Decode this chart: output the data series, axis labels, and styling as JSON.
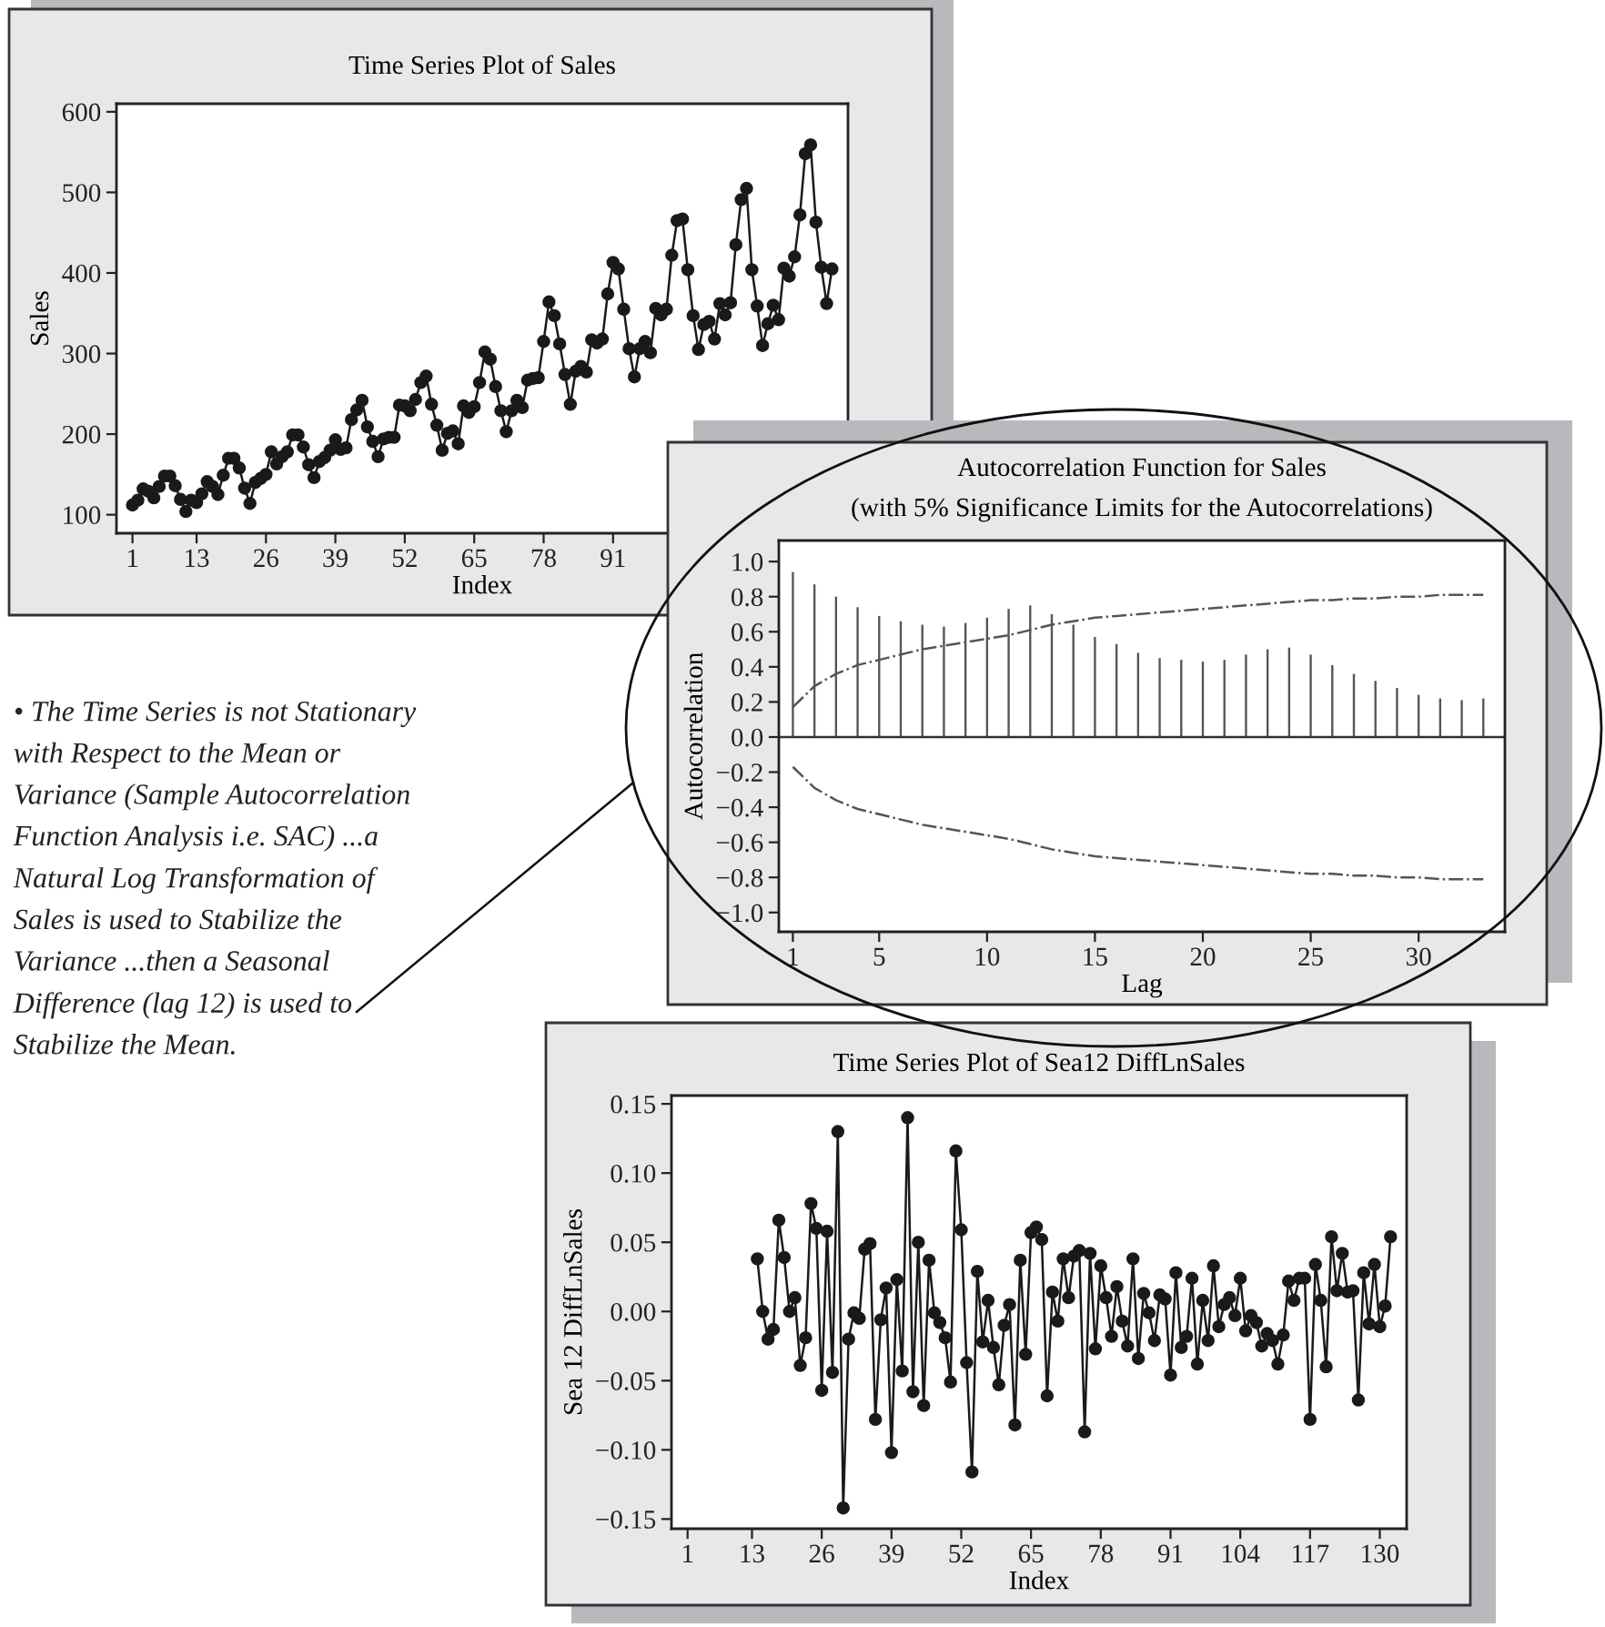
{
  "chart_data": [
    {
      "type": "line",
      "title": "Time Series Plot of Sales",
      "xlabel": "Index",
      "ylabel": "Sales",
      "marker": "circle",
      "x": [
        1,
        2,
        3,
        4,
        5,
        6,
        7,
        8,
        9,
        10,
        11,
        12,
        13,
        14,
        15,
        16,
        17,
        18,
        19,
        20,
        21,
        22,
        23,
        24,
        25,
        26,
        27,
        28,
        29,
        30,
        31,
        32,
        33,
        34,
        35,
        36,
        37,
        38,
        39,
        40,
        41,
        42,
        43,
        44,
        45,
        46,
        47,
        48,
        49,
        50,
        51,
        52,
        53,
        54,
        55,
        56,
        57,
        58,
        59,
        60,
        61,
        62,
        63,
        64,
        65,
        66,
        67,
        68,
        69,
        70,
        71,
        72,
        73,
        74,
        75,
        76,
        77,
        78,
        79,
        80,
        81,
        82,
        83,
        84,
        85,
        86,
        87,
        88,
        89,
        90,
        91,
        92,
        93,
        94,
        95,
        96,
        97,
        98,
        99,
        100,
        101,
        102,
        103,
        104,
        105,
        106,
        107,
        108,
        109,
        110,
        111,
        112,
        113,
        114,
        115,
        116,
        117,
        118,
        119,
        120,
        121,
        122,
        123,
        124,
        125,
        126,
        127,
        128,
        129,
        130,
        131,
        132
      ],
      "series": [
        {
          "color": "#1a1a1a",
          "values": [
            112,
            118,
            132,
            129,
            121,
            135,
            148,
            148,
            136,
            119,
            104,
            118,
            115,
            126,
            141,
            135,
            125,
            149,
            170,
            170,
            158,
            133,
            114,
            140,
            145,
            150,
            178,
            163,
            172,
            178,
            199,
            199,
            184,
            162,
            146,
            166,
            171,
            180,
            193,
            181,
            183,
            218,
            230,
            242,
            209,
            191,
            172,
            194,
            196,
            196,
            236,
            235,
            229,
            243,
            264,
            272,
            237,
            211,
            180,
            201,
            204,
            188,
            235,
            227,
            234,
            264,
            302,
            293,
            259,
            229,
            203,
            229,
            242,
            233,
            267,
            269,
            270,
            315,
            364,
            347,
            312,
            274,
            237,
            278,
            284,
            277,
            317,
            313,
            318,
            374,
            413,
            405,
            355,
            306,
            271,
            306,
            315,
            301,
            356,
            348,
            355,
            422,
            465,
            467,
            404,
            347,
            305,
            336,
            340,
            318,
            362,
            348,
            363,
            435,
            491,
            505,
            404,
            359,
            310,
            337,
            360,
            342,
            406,
            396,
            420,
            472,
            548,
            559,
            463,
            407,
            362,
            405
          ]
        }
      ],
      "xlim": [
        -2,
        135
      ],
      "ylim": [
        77,
        610
      ],
      "xticks": [
        1,
        13,
        26,
        39,
        52,
        65,
        78,
        91
      ],
      "yticks": [
        100,
        200,
        300,
        400,
        500,
        600
      ]
    },
    {
      "type": "bar",
      "title": "Autocorrelation Function for Sales",
      "subtitle": "(with 5% Significance Limits for the Autocorrelations)",
      "xlabel": "Lag",
      "ylabel": "Autocorrelation",
      "x": [
        1,
        2,
        3,
        4,
        5,
        6,
        7,
        8,
        9,
        10,
        11,
        12,
        13,
        14,
        15,
        16,
        17,
        18,
        19,
        20,
        21,
        22,
        23,
        24,
        25,
        26,
        27,
        28,
        29,
        30,
        31,
        32,
        33
      ],
      "series": [
        {
          "type": "bar",
          "color": "#555555",
          "values": [
            0.94,
            0.87,
            0.8,
            0.74,
            0.69,
            0.66,
            0.64,
            0.63,
            0.65,
            0.68,
            0.73,
            0.75,
            0.7,
            0.64,
            0.57,
            0.53,
            0.48,
            0.45,
            0.44,
            0.43,
            0.44,
            0.47,
            0.5,
            0.51,
            0.47,
            0.41,
            0.36,
            0.32,
            0.28,
            0.24,
            0.22,
            0.21,
            0.22
          ]
        },
        {
          "type": "line",
          "color": "#555555",
          "line_style": "dashdot",
          "values": [
            0.17,
            0.29,
            0.36,
            0.41,
            0.44,
            0.47,
            0.5,
            0.52,
            0.54,
            0.56,
            0.58,
            0.61,
            0.64,
            0.66,
            0.68,
            0.69,
            0.7,
            0.71,
            0.72,
            0.73,
            0.74,
            0.75,
            0.76,
            0.77,
            0.78,
            0.78,
            0.79,
            0.79,
            0.8,
            0.8,
            0.81,
            0.81,
            0.81
          ]
        },
        {
          "type": "line",
          "color": "#555555",
          "line_style": "dashdot",
          "values": [
            -0.17,
            -0.29,
            -0.36,
            -0.41,
            -0.44,
            -0.47,
            -0.5,
            -0.52,
            -0.54,
            -0.56,
            -0.58,
            -0.61,
            -0.64,
            -0.66,
            -0.68,
            -0.69,
            -0.7,
            -0.71,
            -0.72,
            -0.73,
            -0.74,
            -0.75,
            -0.76,
            -0.77,
            -0.78,
            -0.78,
            -0.79,
            -0.79,
            -0.8,
            -0.8,
            -0.81,
            -0.81,
            -0.81
          ]
        }
      ],
      "ref_lines": [
        {
          "axis": "y",
          "value": 0,
          "color": "#333333"
        }
      ],
      "xlim": [
        0.35,
        34
      ],
      "ylim": [
        -1.11,
        1.12
      ],
      "xticks": [
        1,
        5,
        10,
        15,
        20,
        25,
        30
      ],
      "yticks": [
        {
          "value": 1.0,
          "label": "1.0"
        },
        {
          "value": 0.8,
          "label": "0.8"
        },
        {
          "value": 0.6,
          "label": "0.6"
        },
        {
          "value": 0.4,
          "label": "0.4"
        },
        {
          "value": 0.2,
          "label": "0.2"
        },
        {
          "value": 0.0,
          "label": "0.0"
        },
        {
          "value": -0.2,
          "label": "−0.2"
        },
        {
          "value": -0.4,
          "label": "−0.4"
        },
        {
          "value": -0.6,
          "label": "−0.6"
        },
        {
          "value": -0.8,
          "label": "−0.8"
        },
        {
          "value": -1.0,
          "label": "−1.0"
        }
      ],
      "annotations": [
        "• The Time Series is not Stationary with Respect to the Mean or Variance (Sample Autocorrelation Function Analysis i.e. SAC) ...a Natural Log Transformation of Sales is used to Stabilize the Variance ...then a Seasonal Difference (lag 12) is used to Stabilize the Mean."
      ]
    },
    {
      "type": "line",
      "title": "Time Series Plot of Sea12 DiffLnSales",
      "xlabel": "Index",
      "ylabel": "Sea 12 DiffLnSales",
      "marker": "circle",
      "x": [
        14,
        15,
        16,
        17,
        18,
        19,
        20,
        21,
        22,
        23,
        24,
        25,
        26,
        27,
        28,
        29,
        30,
        31,
        32,
        33,
        34,
        35,
        36,
        37,
        38,
        39,
        40,
        41,
        42,
        43,
        44,
        45,
        46,
        47,
        48,
        49,
        50,
        51,
        52,
        53,
        54,
        55,
        56,
        57,
        58,
        59,
        60,
        61,
        62,
        63,
        64,
        65,
        66,
        67,
        68,
        69,
        70,
        71,
        72,
        73,
        74,
        75,
        76,
        77,
        78,
        79,
        80,
        81,
        82,
        83,
        84,
        85,
        86,
        87,
        88,
        89,
        90,
        91,
        92,
        93,
        94,
        95,
        96,
        97,
        98,
        99,
        100,
        101,
        102,
        103,
        104,
        105,
        106,
        107,
        108,
        109,
        110,
        111,
        112,
        113,
        114,
        115,
        116,
        117,
        118,
        119,
        120,
        121,
        122,
        123,
        124,
        125,
        126,
        127,
        128,
        129,
        130,
        131,
        132
      ],
      "series": [
        {
          "color": "#1a1a1a",
          "values": [
            0.038,
            0.0,
            -0.02,
            -0.013,
            0.066,
            0.039,
            0.0,
            0.01,
            -0.039,
            -0.019,
            0.078,
            0.06,
            -0.057,
            0.058,
            -0.044,
            0.13,
            -0.142,
            -0.02,
            -0.001,
            -0.005,
            0.045,
            0.049,
            -0.078,
            -0.006,
            0.017,
            -0.102,
            0.023,
            -0.043,
            0.14,
            -0.058,
            0.05,
            -0.068,
            0.037,
            -0.001,
            -0.008,
            -0.019,
            -0.051,
            0.116,
            0.059,
            -0.037,
            -0.116,
            0.029,
            -0.022,
            0.008,
            -0.026,
            -0.053,
            -0.01,
            0.005,
            -0.082,
            0.037,
            -0.031,
            0.057,
            0.061,
            0.052,
            -0.061,
            0.014,
            -0.007,
            0.038,
            0.01,
            0.04,
            0.044,
            -0.087,
            0.042,
            -0.027,
            0.033,
            0.01,
            -0.018,
            0.018,
            -0.007,
            -0.025,
            0.038,
            -0.034,
            0.013,
            -0.001,
            -0.021,
            0.012,
            0.009,
            -0.046,
            0.028,
            -0.026,
            -0.018,
            0.024,
            -0.038,
            0.008,
            -0.021,
            0.033,
            -0.011,
            0.005,
            0.01,
            -0.003,
            0.024,
            -0.014,
            -0.003,
            -0.008,
            -0.025,
            -0.016,
            -0.021,
            -0.038,
            -0.017,
            0.022,
            0.008,
            0.024,
            0.024,
            -0.078,
            0.034,
            0.008,
            -0.04,
            0.054,
            0.015,
            0.042,
            0.014,
            0.015,
            -0.064,
            0.028,
            -0.009,
            0.034,
            -0.011,
            0.004,
            0.054
          ]
        }
      ],
      "xlim": [
        -2,
        135
      ],
      "ylim": [
        -0.157,
        0.156
      ],
      "xticks": [
        1,
        13,
        26,
        39,
        52,
        65,
        78,
        91,
        104,
        117,
        130
      ],
      "yticks": [
        {
          "value": 0.15,
          "label": "0.15"
        },
        {
          "value": 0.1,
          "label": "0.10"
        },
        {
          "value": 0.05,
          "label": "0.05"
        },
        {
          "value": 0.0,
          "label": "0.00"
        },
        {
          "value": -0.05,
          "label": "−0.05"
        },
        {
          "value": -0.1,
          "label": "−0.10"
        },
        {
          "value": -0.15,
          "label": "−0.15"
        }
      ]
    }
  ]
}
